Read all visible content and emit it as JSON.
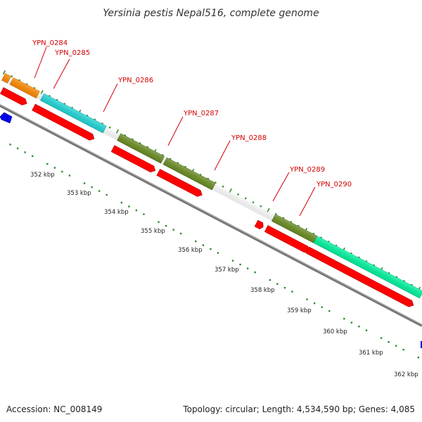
{
  "title": "Yersinia pestis Nepal516, complete genome",
  "accession": "Accession: NC_008149",
  "topology": "Topology: circular; Length: 4,534,590 bp; Genes: 4,085",
  "colors": {
    "backbone": "#7a7a7a",
    "tick": "#2e8b2e",
    "gene_label": "#d40000",
    "cds_red": "#ff0000",
    "blue": "#0000ee",
    "orange": "#ff8c00",
    "cyan": "#22d8d8",
    "olive": "#6b8e23",
    "springgreen": "#00f5a0"
  },
  "scale_labels": [
    "352 kbp",
    "353 kbp",
    "354 kbp",
    "355 kbp",
    "356 kbp",
    "357 kbp",
    "358 kbp",
    "359 kbp",
    "360 kbp",
    "361 kbp",
    "362 kbp"
  ],
  "gene_labels": [
    "YPN_0284",
    "YPN_0285",
    "YPN_0286",
    "YPN_0287",
    "YPN_0288",
    "YPN_0289",
    "YPN_0290"
  ]
}
